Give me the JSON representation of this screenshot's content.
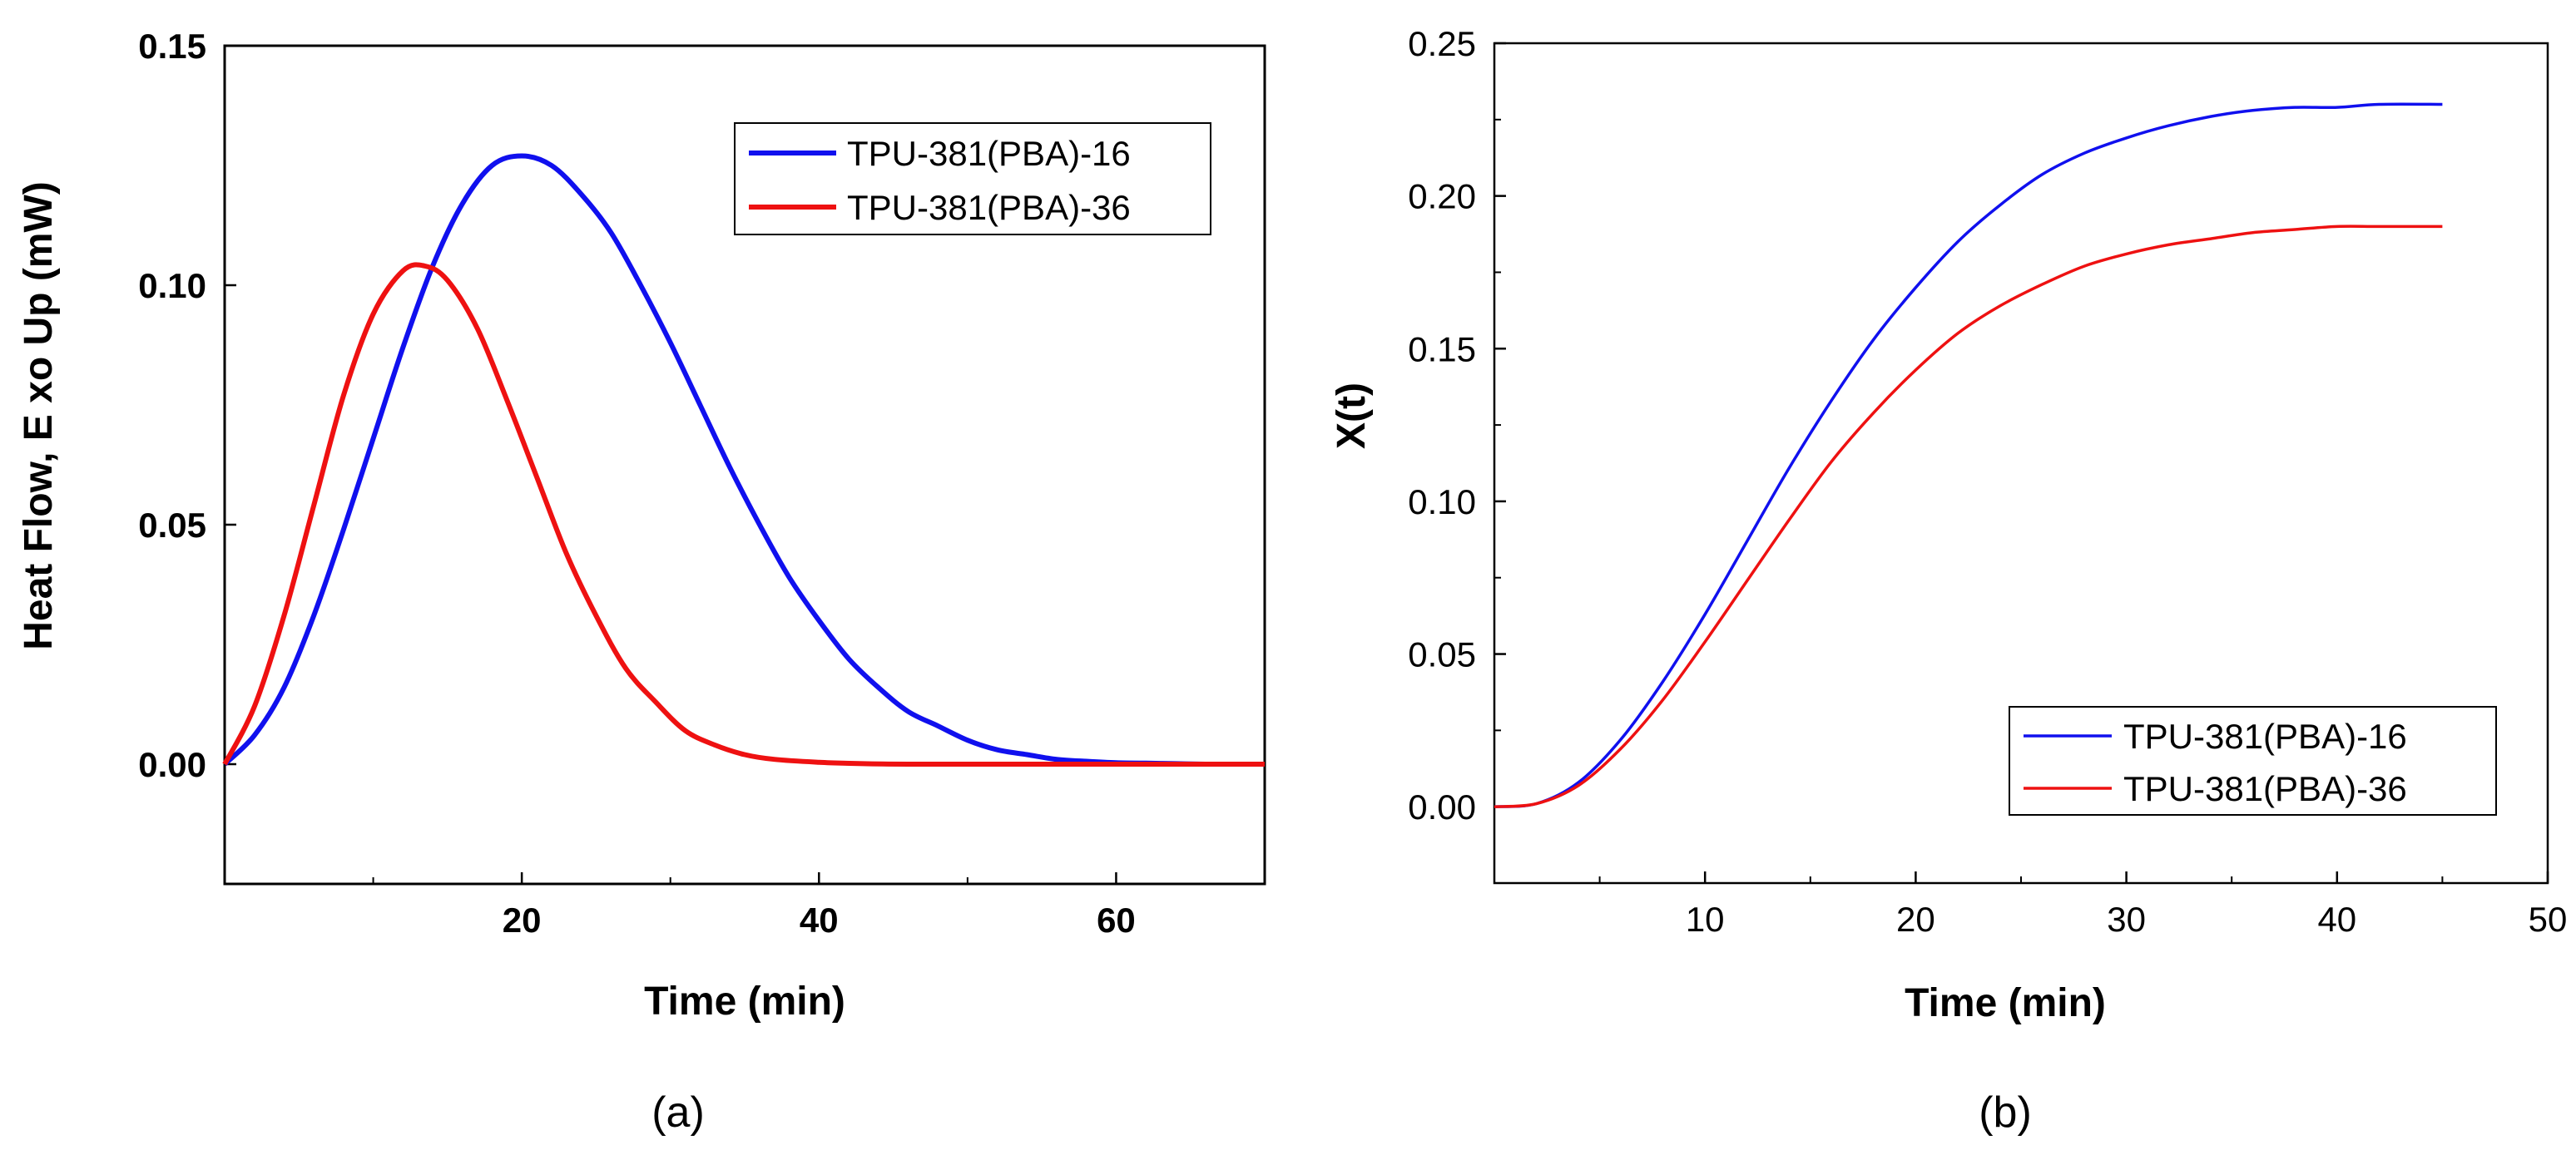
{
  "colors": {
    "series1": "#1010ee",
    "series2": "#ee1111"
  },
  "chart_data": [
    {
      "type": "line",
      "panel_label": "(a)",
      "xlabel": "Time (min)",
      "ylabel": "Heat Flow, E xo Up (mW)",
      "xlim": [
        0,
        70
      ],
      "ylim": [
        -0.025,
        0.15
      ],
      "xticks": [
        20,
        40,
        60
      ],
      "yticks": [
        0.0,
        0.05,
        0.1,
        0.15
      ],
      "ytick_labels": [
        "0.00",
        "0.05",
        "0.10",
        "0.15"
      ],
      "legend_position": "top-right",
      "series": [
        {
          "name": "TPU-381(PBA)-16",
          "color": "#1010ee",
          "x": [
            0,
            2,
            4,
            6,
            8,
            10,
            12,
            14,
            16,
            18,
            20,
            22,
            24,
            26,
            28,
            30,
            32,
            34,
            36,
            38,
            40,
            42,
            44,
            46,
            48,
            50,
            52,
            54,
            56,
            58,
            60,
            62,
            64,
            66,
            68,
            70
          ],
          "y": [
            0,
            0.006,
            0.016,
            0.031,
            0.049,
            0.068,
            0.087,
            0.104,
            0.117,
            0.125,
            0.127,
            0.125,
            0.119,
            0.111,
            0.1,
            0.088,
            0.075,
            0.062,
            0.05,
            0.039,
            0.03,
            0.022,
            0.016,
            0.011,
            0.008,
            0.005,
            0.003,
            0.002,
            0.001,
            0.0006,
            0.0003,
            0.0002,
            0.0001,
            0,
            0,
            0
          ]
        },
        {
          "name": "TPU-381(PBA)-36",
          "color": "#ee1111",
          "x": [
            0,
            2,
            4,
            6,
            8,
            10,
            12,
            13.5,
            15,
            17,
            19,
            21,
            23,
            25,
            27,
            29,
            31,
            33,
            35,
            37,
            40,
            43,
            46,
            50,
            55,
            60,
            65,
            70
          ],
          "y": [
            0,
            0.012,
            0.031,
            0.054,
            0.077,
            0.094,
            0.103,
            0.104,
            0.101,
            0.091,
            0.076,
            0.06,
            0.044,
            0.031,
            0.02,
            0.013,
            0.007,
            0.004,
            0.002,
            0.001,
            0.0004,
            0.0001,
            0,
            0,
            0,
            0,
            0,
            0
          ]
        }
      ]
    },
    {
      "type": "line",
      "panel_label": "(b)",
      "xlabel": "Time (min)",
      "ylabel": "X(t)",
      "xlim": [
        0,
        50
      ],
      "ylim": [
        -0.025,
        0.25
      ],
      "xticks": [
        10,
        20,
        30,
        40,
        50
      ],
      "yticks": [
        0.0,
        0.05,
        0.1,
        0.15,
        0.2,
        0.25
      ],
      "ytick_labels": [
        "0.00",
        "0.05",
        "0.10",
        "0.15",
        "0.20",
        "0.25"
      ],
      "legend_position": "bottom-right",
      "series": [
        {
          "name": "TPU-381(PBA)-16",
          "color": "#1010ee",
          "x": [
            0,
            2,
            4,
            6,
            8,
            10,
            12,
            14,
            16,
            18,
            20,
            22,
            24,
            26,
            28,
            30,
            32,
            34,
            36,
            38,
            40,
            42,
            45
          ],
          "y": [
            0,
            0.001,
            0.008,
            0.022,
            0.041,
            0.063,
            0.087,
            0.111,
            0.133,
            0.153,
            0.17,
            0.185,
            0.197,
            0.207,
            0.214,
            0.219,
            0.223,
            0.226,
            0.228,
            0.229,
            0.229,
            0.23,
            0.23
          ]
        },
        {
          "name": "TPU-381(PBA)-36",
          "color": "#ee1111",
          "x": [
            0,
            2,
            4,
            6,
            8,
            10,
            12,
            14,
            16,
            18,
            20,
            22,
            24,
            26,
            28,
            30,
            32,
            34,
            36,
            38,
            40,
            42,
            45
          ],
          "y": [
            0,
            0.001,
            0.007,
            0.019,
            0.035,
            0.054,
            0.074,
            0.094,
            0.113,
            0.129,
            0.143,
            0.155,
            0.164,
            0.171,
            0.177,
            0.181,
            0.184,
            0.186,
            0.188,
            0.189,
            0.19,
            0.19,
            0.19
          ]
        }
      ]
    }
  ]
}
